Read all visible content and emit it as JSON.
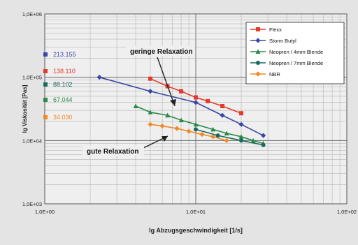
{
  "chart_data": {
    "type": "line",
    "x_scale": "log",
    "y_scale": "log",
    "xlim": [
      1,
      100
    ],
    "ylim": [
      1000,
      1000000
    ],
    "x_ticks": [
      {
        "value": 1,
        "label": "1,0E+00"
      },
      {
        "value": 10,
        "label": "1,0E+01"
      },
      {
        "value": 100,
        "label": "1,0E+02"
      }
    ],
    "y_ticks": [
      {
        "value": 1000,
        "label": "1,0E+03"
      },
      {
        "value": 10000,
        "label": "1,0E+04"
      },
      {
        "value": 100000,
        "label": "1,0E+05"
      },
      {
        "value": 1000000,
        "label": "1,0E+06"
      }
    ],
    "xlabel": "lg Abzugsgeschwindigkeit [1/s]",
    "ylabel": "lg Viskosität [Pas]",
    "grid": true,
    "legend_position": "top-right",
    "series": [
      {
        "name": "Flexx",
        "color": "#e43a2c",
        "marker": "square",
        "x": [
          5,
          6.5,
          8,
          10,
          12,
          15,
          20
        ],
        "y": [
          95000,
          72000,
          60000,
          48000,
          42000,
          35000,
          27000
        ]
      },
      {
        "name": "Storm Butyl",
        "color": "#3a46a6",
        "marker": "diamond",
        "x": [
          2.3,
          5,
          10,
          15,
          20,
          28
        ],
        "y": [
          100000,
          60000,
          40000,
          25000,
          18000,
          12000
        ]
      },
      {
        "name": "Neopren / 4mm Blende",
        "color": "#2a8a48",
        "marker": "triangle",
        "x": [
          4,
          5,
          6.5,
          8,
          10,
          13,
          16,
          20,
          24,
          28
        ],
        "y": [
          35000,
          28000,
          25000,
          21000,
          18000,
          15000,
          13000,
          11500,
          10000,
          9000
        ]
      },
      {
        "name": "Neopren / 7mm Blende",
        "color": "#1a6a5c",
        "marker": "circle",
        "x": [
          10,
          14,
          20,
          28
        ],
        "y": [
          15000,
          12000,
          10000,
          8500
        ]
      },
      {
        "name": "NBR",
        "color": "#f08a24",
        "marker": "diamond",
        "x": [
          5,
          6,
          7.5,
          9,
          11,
          13,
          16
        ],
        "y": [
          18000,
          17000,
          15500,
          14000,
          12500,
          11500,
          10000
        ]
      }
    ],
    "annotations": [
      {
        "text": "geringe Relaxation"
      },
      {
        "text": "gute Relaxation"
      }
    ],
    "y_axis_value_labels": [
      {
        "text": "213.155",
        "color": "#3a46a6"
      },
      {
        "text": "138.110",
        "color": "#e43a2c"
      },
      {
        "text": "88.102",
        "color": "#1a6a5c"
      },
      {
        "text": "67.044",
        "color": "#2a8a48"
      },
      {
        "text": "34.030",
        "color": "#f08a24"
      }
    ]
  }
}
